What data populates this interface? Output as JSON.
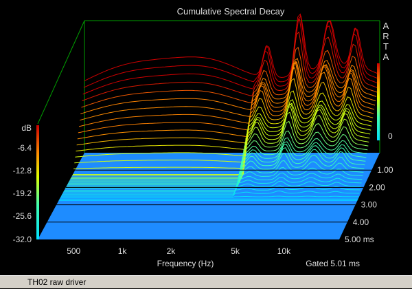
{
  "chart_data": {
    "type": "waterfall-3d",
    "title": "Cumulative Spectral Decay",
    "brand": "ARTA",
    "xlabel": "Frequency (Hz)",
    "x_scale": "log",
    "xlim": [
      300,
      22000
    ],
    "x_ticks": [
      {
        "value": 500,
        "label": "500"
      },
      {
        "value": 1000,
        "label": "1k"
      },
      {
        "value": 2000,
        "label": "2k"
      },
      {
        "value": 5000,
        "label": "5k"
      },
      {
        "value": 10000,
        "label": "10k"
      }
    ],
    "zlabel": "dB",
    "zlim": [
      -32.0,
      0
    ],
    "z_ticks": [
      "-6.4",
      "-12.8",
      "-19.2",
      "-25.6",
      "-32.0"
    ],
    "right_scale_top": "0",
    "time_ticks": [
      "1.00",
      "2.00",
      "3.00",
      "4.00",
      "5.00 ms"
    ],
    "time_range_ms": [
      0,
      5.0
    ],
    "gate_label": "Gated 5.01 ms",
    "colors": {
      "floor": "#1e8cff",
      "frame": "#00a000",
      "background": "#000000"
    }
  },
  "footer": {
    "label": "TH02 raw driver"
  }
}
